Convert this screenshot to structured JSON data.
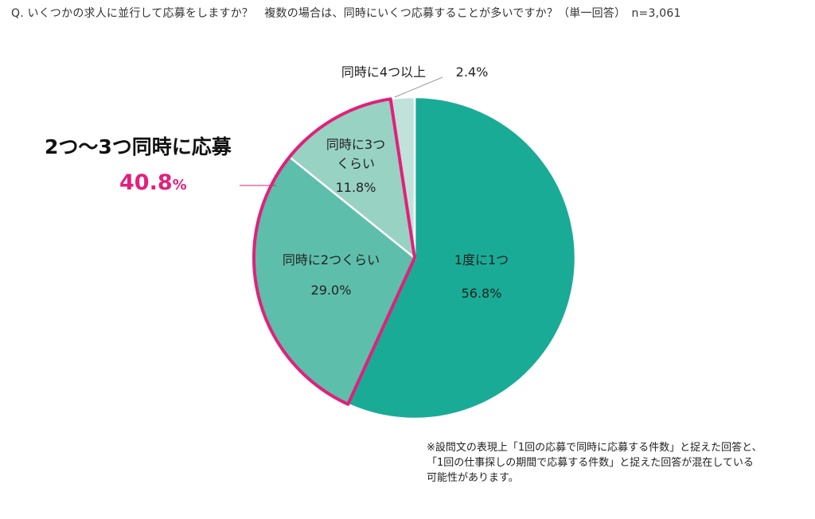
{
  "question": "Q.  いくつかの求人に並行して応募をしますか？　複数の場合は、同時にいくつ応募することが多いですか？（単一回答）　n=3,061",
  "highlight": {
    "title": "2つ〜3つ同時に応募",
    "value": "40.8",
    "unit": "%"
  },
  "footnote": [
    "※設問文の表現上「1回の応募で同時に応募する件数」と捉えた回答と、",
    "「1回の仕事探しの期間で応募する件数」と捉えた回答が混在している",
    "可能性があります。"
  ],
  "colors": {
    "highlight_border": "#e2207a",
    "slice_1": "#1aab96",
    "slice_2": "#5dbeab",
    "slice_3": "#97d2c3",
    "slice_4": "#c0e2da"
  },
  "chart_data": {
    "type": "pie",
    "start": "12 o'clock, clockwise",
    "slices": [
      {
        "label": "1度に1つ",
        "label_lines": [
          "1度に1つ"
        ],
        "value": 56.8,
        "value_text": "56.8%",
        "color": "#1aab96",
        "highlighted": false
      },
      {
        "label": "同時に2つくらい",
        "label_lines": [
          "同時に2つくらい"
        ],
        "value": 29.0,
        "value_text": "29.0%",
        "color": "#5dbeab",
        "highlighted": true
      },
      {
        "label": "同時に3つくらい",
        "label_lines": [
          "同時に3つ",
          "くらい"
        ],
        "value": 11.8,
        "value_text": "11.8%",
        "color": "#97d2c3",
        "highlighted": true
      },
      {
        "label": "同時に4つ以上",
        "label_lines": [
          "同時に4つ以上"
        ],
        "value": 2.4,
        "value_text": "2.4%",
        "color": "#c0e2da",
        "highlighted": false
      }
    ],
    "highlight_group": {
      "label": "2つ〜3つ同時に応募",
      "value": 40.8
    }
  }
}
